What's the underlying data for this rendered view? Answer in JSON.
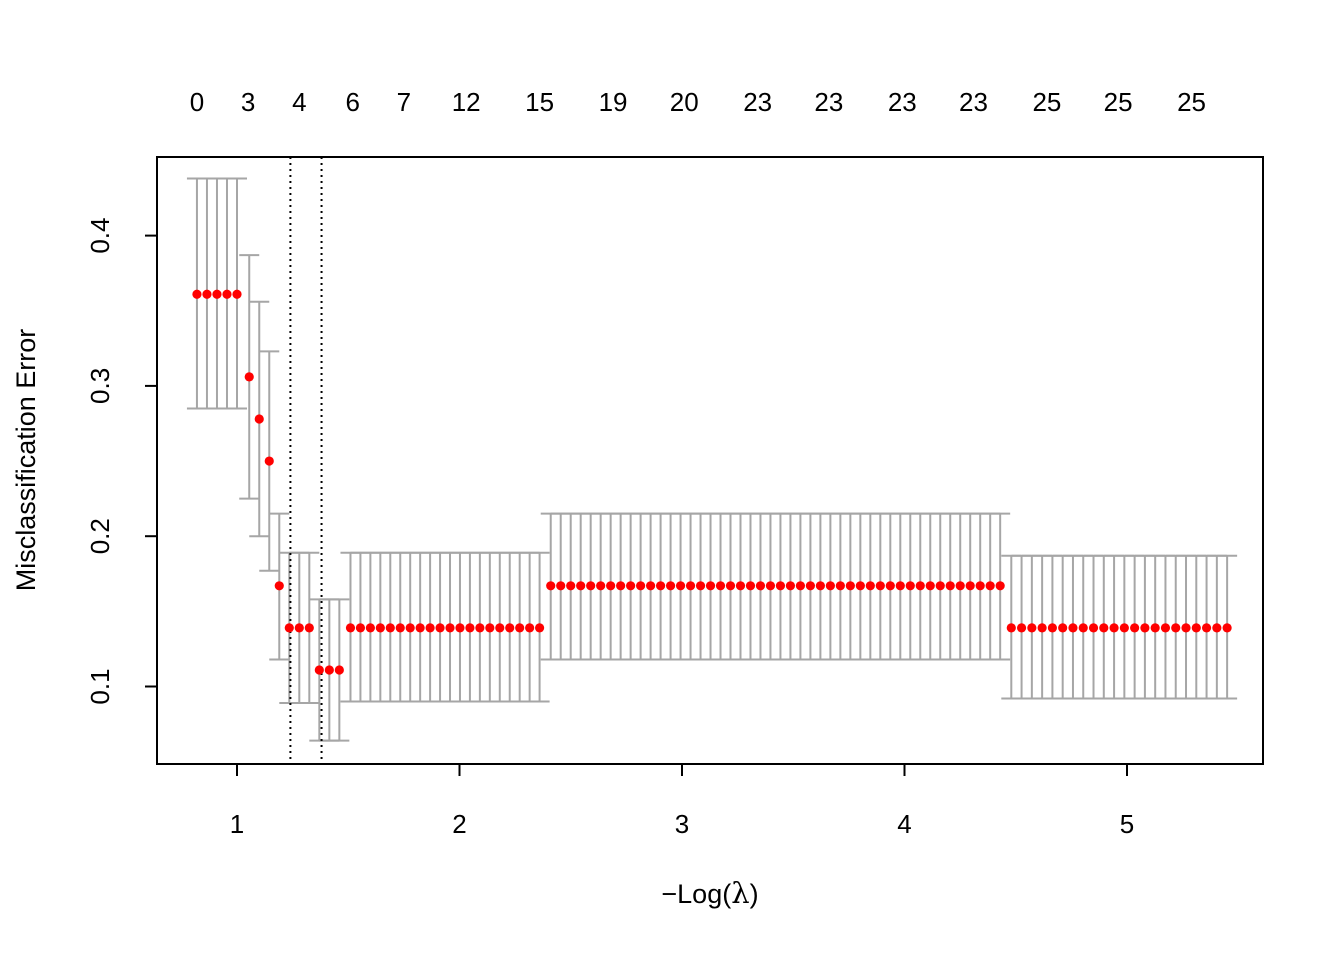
{
  "chart_data": {
    "type": "scatter",
    "title": "",
    "xlabel_prefix": "−Log(",
    "xlabel_symbol": "λ",
    "xlabel_suffix": ")",
    "ylabel": "Misclassification Error",
    "xlim": [
      0.82,
      5.45
    ],
    "ylim": [
      0.05,
      0.44
    ],
    "x_ticks": [
      1,
      2,
      3,
      4,
      5
    ],
    "x_tick_labels": [
      "1",
      "2",
      "3",
      "4",
      "5"
    ],
    "y_ticks": [
      0.1,
      0.2,
      0.3,
      0.4
    ],
    "y_tick_labels": [
      "0.1",
      "0.2",
      "0.3",
      "0.4"
    ],
    "top_axis": {
      "positions": [
        0.82,
        1.05,
        1.28,
        1.52,
        1.75,
        2.03,
        2.36,
        2.69,
        3.01,
        3.34,
        3.66,
        3.99,
        4.31,
        4.64,
        4.96,
        5.29
      ],
      "labels": [
        "0",
        "3",
        "4",
        "6",
        "7",
        "12",
        "15",
        "19",
        "20",
        "23",
        "23",
        "23",
        "23",
        "25",
        "25",
        "25"
      ]
    },
    "vlines": [
      1.24,
      1.38
    ],
    "point_color": "#ff0000",
    "errorbar_color": "#a6a6a6",
    "grid": false,
    "legend": "none",
    "segments": [
      {
        "x_start": 0.82,
        "x_end": 1.0,
        "n": 5,
        "y": 0.361,
        "lo": 0.285,
        "hi": 0.438
      },
      {
        "x_start": 1.055,
        "x_end": 1.055,
        "n": 1,
        "y": 0.306,
        "lo": 0.225,
        "hi": 0.387
      },
      {
        "x_start": 1.1,
        "x_end": 1.1,
        "n": 1,
        "y": 0.278,
        "lo": 0.2,
        "hi": 0.356
      },
      {
        "x_start": 1.145,
        "x_end": 1.145,
        "n": 1,
        "y": 0.25,
        "lo": 0.177,
        "hi": 0.323
      },
      {
        "x_start": 1.19,
        "x_end": 1.19,
        "n": 1,
        "y": 0.167,
        "lo": 0.118,
        "hi": 0.215
      },
      {
        "x_start": 1.235,
        "x_end": 1.325,
        "n": 3,
        "y": 0.139,
        "lo": 0.089,
        "hi": 0.189
      },
      {
        "x_start": 1.37,
        "x_end": 1.46,
        "n": 3,
        "y": 0.111,
        "lo": 0.064,
        "hi": 0.158
      },
      {
        "x_start": 1.51,
        "x_end": 2.36,
        "n": 20,
        "y": 0.139,
        "lo": 0.09,
        "hi": 0.189
      },
      {
        "x_start": 2.41,
        "x_end": 4.43,
        "n": 46,
        "y": 0.167,
        "lo": 0.118,
        "hi": 0.215
      },
      {
        "x_start": 4.48,
        "x_end": 5.45,
        "n": 22,
        "y": 0.139,
        "lo": 0.092,
        "hi": 0.187
      }
    ]
  }
}
